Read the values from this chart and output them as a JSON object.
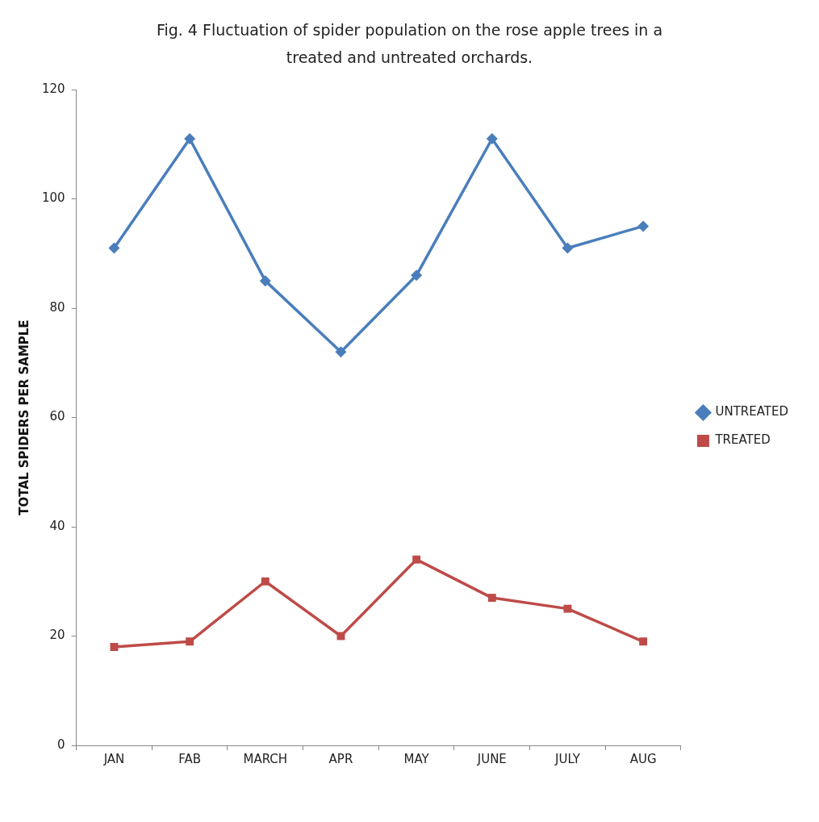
{
  "chart_data": {
    "type": "line",
    "title": "Fig. 4 Fluctuation of spider population on the rose apple trees in a treated and untreated orchards.",
    "ylabel": "TOTAL SPIDERS PER SAMPLE",
    "categories": [
      "JAN",
      "FAB",
      "MARCH",
      "APR",
      "MAY",
      "JUNE",
      "JULY",
      "AUG"
    ],
    "series": [
      {
        "name": "UNTREATED",
        "color": "#4a7ebb",
        "marker": "diamond",
        "values": [
          91,
          111,
          85,
          72,
          86,
          111,
          91,
          95
        ]
      },
      {
        "name": "TREATED",
        "color": "#be4b48",
        "marker": "square",
        "values": [
          18,
          19,
          30,
          20,
          34,
          27,
          25,
          19
        ]
      }
    ],
    "ylim": [
      0,
      120
    ],
    "yticks": [
      0,
      20,
      40,
      60,
      80,
      100,
      120
    ],
    "grid": false,
    "legend": "right",
    "line_style": "solid"
  }
}
